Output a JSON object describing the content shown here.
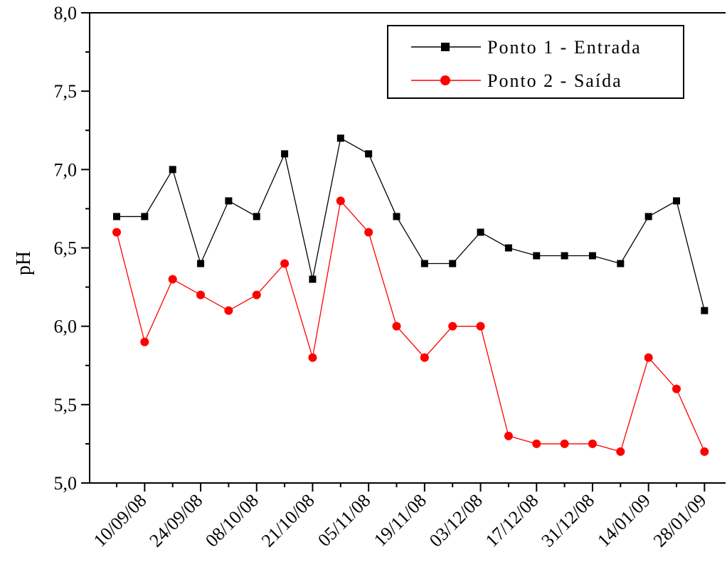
{
  "chart_data": {
    "type": "line",
    "title": "",
    "xlabel": "",
    "ylabel": "pH",
    "ylim": [
      5.0,
      8.0
    ],
    "y_ticks": [
      "5,0",
      "5,5",
      "6,0",
      "6,5",
      "7,0",
      "7,5",
      "8,0"
    ],
    "y_tick_values": [
      5.0,
      5.5,
      6.0,
      6.5,
      7.0,
      7.5,
      8.0
    ],
    "x_tick_labels": [
      "10/09/08",
      "24/09/08",
      "08/10/08",
      "21/10/08",
      "05/11/08",
      "19/11/08",
      "03/12/08",
      "17/12/08",
      "31/12/08",
      "14/01/09",
      "28/01/09"
    ],
    "point_count": 22,
    "legend_position": "top-right",
    "series": [
      {
        "name": "Ponto 1 - Entrada",
        "color": "#000000",
        "marker": "square",
        "values": [
          6.7,
          6.7,
          7.0,
          6.4,
          6.8,
          6.7,
          7.1,
          6.3,
          7.2,
          7.1,
          6.7,
          6.4,
          6.4,
          6.6,
          6.5,
          6.45,
          6.45,
          6.45,
          6.4,
          6.7,
          6.8,
          6.1
        ]
      },
      {
        "name": "Ponto 2 - Saída",
        "color": "#ff0000",
        "marker": "circle",
        "values": [
          6.6,
          5.9,
          6.3,
          6.2,
          6.1,
          6.2,
          6.4,
          5.8,
          6.8,
          6.6,
          6.0,
          5.8,
          6.0,
          6.0,
          5.3,
          5.25,
          5.25,
          5.25,
          5.2,
          5.8,
          5.6,
          5.2
        ]
      }
    ]
  }
}
